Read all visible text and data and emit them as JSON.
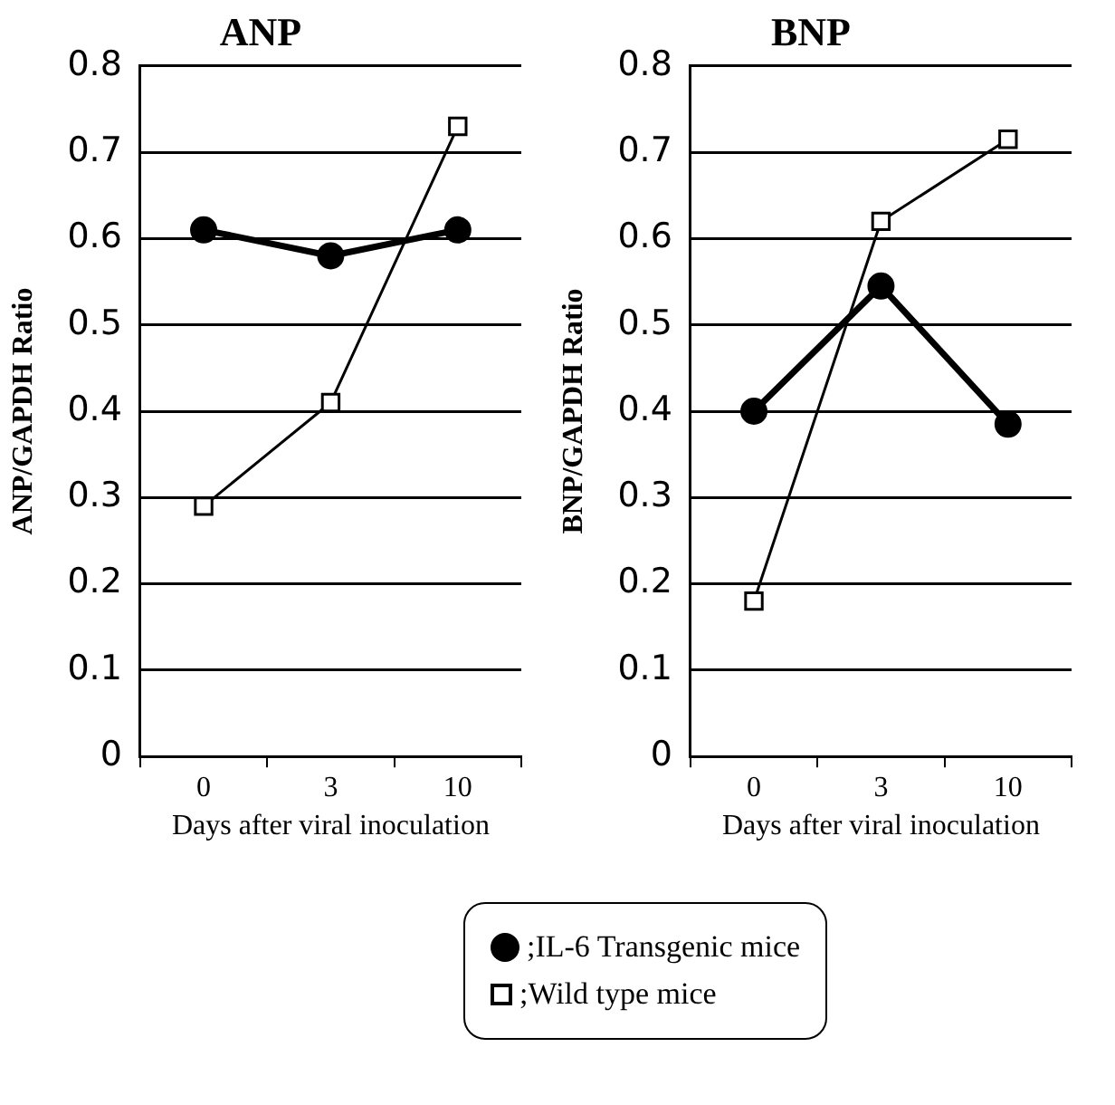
{
  "chart_data": [
    {
      "type": "line",
      "title": "ANP",
      "xlabel": "Days after viral inoculation",
      "ylabel": "ANP/GAPDH Ratio",
      "categories": [
        "0",
        "3",
        "10"
      ],
      "ylim": [
        0,
        0.8
      ],
      "yticks": [
        0,
        0.1,
        0.2,
        0.3,
        0.4,
        0.5,
        0.6,
        0.7,
        0.8
      ],
      "grid": "y",
      "legend": "bottom",
      "series": [
        {
          "name": ";IL-6 Transgenic mice",
          "color": "#000000",
          "marker": "circle",
          "values": [
            0.61,
            0.58,
            0.61
          ]
        },
        {
          "name": ";Wild type mice",
          "color": "#000000",
          "marker": "square",
          "values": [
            0.29,
            0.41,
            0.73
          ]
        }
      ]
    },
    {
      "type": "line",
      "title": "BNP",
      "xlabel": "Days after viral inoculation",
      "ylabel": "BNP/GAPDH Ratio",
      "categories": [
        "0",
        "3",
        "10"
      ],
      "ylim": [
        0,
        0.8
      ],
      "yticks": [
        0,
        0.1,
        0.2,
        0.3,
        0.4,
        0.5,
        0.6,
        0.7,
        0.8
      ],
      "grid": "y",
      "series": [
        {
          "color": "#000000",
          "marker": "circle",
          "values": [
            0.4,
            0.545,
            0.385
          ]
        },
        {
          "color": "#000000",
          "marker": "square",
          "values": [
            0.18,
            0.62,
            0.715
          ]
        }
      ]
    }
  ]
}
